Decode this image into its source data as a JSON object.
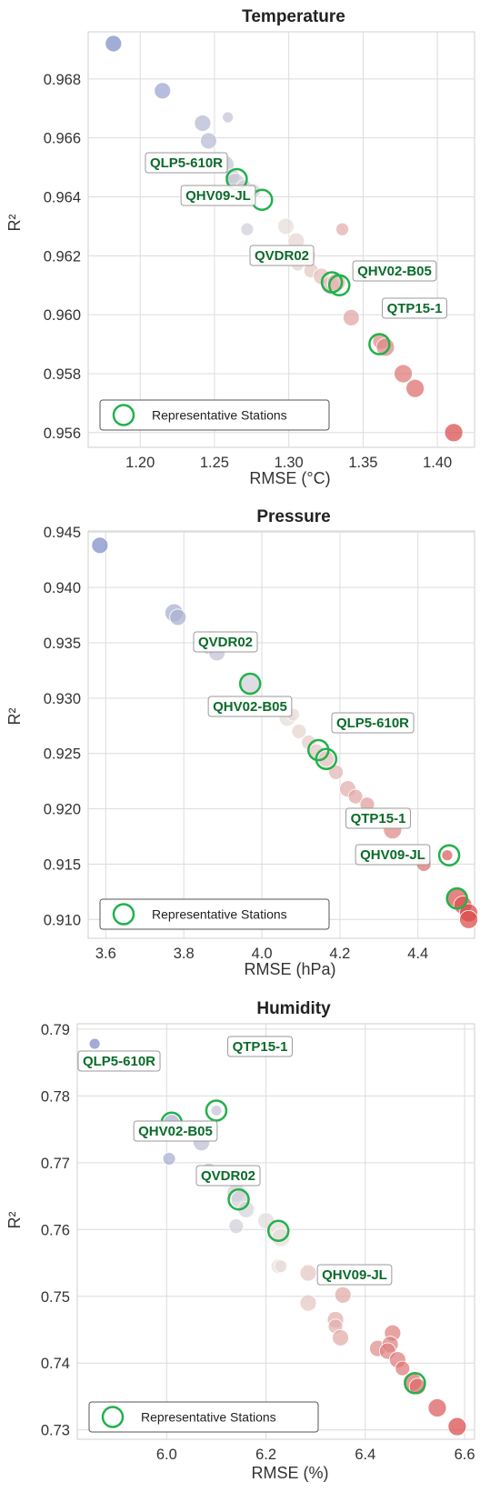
{
  "legend_label": "Representative Stations",
  "colors": {
    "low": "#7d8cc8",
    "mid": "#e6e0dc",
    "high": "#d94a4a",
    "representative_ring": "#22b14c",
    "label_text": "#0b6b2a"
  },
  "chart_data": [
    {
      "type": "scatter",
      "title": "Temperature",
      "xlabel": "RMSE (°C)",
      "ylabel": "R²",
      "xlim": [
        1.165,
        1.425
      ],
      "ylim": [
        0.9555,
        0.9696
      ],
      "xticks": [
        "1.20",
        "1.25",
        "1.30",
        "1.35",
        "1.40"
      ],
      "yticks": [
        "0.956",
        "0.958",
        "0.960",
        "0.962",
        "0.964",
        "0.966",
        "0.968"
      ],
      "legend_position": "lower-left",
      "grid": true,
      "points": [
        [
          1.182,
          0.9692,
          9
        ],
        [
          1.215,
          0.9676,
          9
        ],
        [
          1.242,
          0.9665,
          9
        ],
        [
          1.246,
          0.9659,
          9
        ],
        [
          1.259,
          0.9667,
          6
        ],
        [
          1.257,
          0.9651,
          10
        ],
        [
          1.262,
          0.9647,
          8
        ],
        [
          1.264,
          0.9645,
          10
        ],
        [
          1.27,
          0.9643,
          9
        ],
        [
          1.276,
          0.9642,
          8
        ],
        [
          1.272,
          0.9629,
          7
        ],
        [
          1.298,
          0.963,
          9
        ],
        [
          1.305,
          0.9625,
          9
        ],
        [
          1.312,
          0.962,
          10
        ],
        [
          1.306,
          0.9617,
          7
        ],
        [
          1.315,
          0.9615,
          8
        ],
        [
          1.322,
          0.9613,
          9
        ],
        [
          1.328,
          0.961,
          10
        ],
        [
          1.332,
          0.9611,
          10
        ],
        [
          1.336,
          0.9629,
          7
        ],
        [
          1.342,
          0.9599,
          9
        ],
        [
          1.358,
          0.9615,
          6
        ],
        [
          1.362,
          0.9591,
          9
        ],
        [
          1.365,
          0.9589,
          10
        ],
        [
          1.377,
          0.958,
          10
        ],
        [
          1.385,
          0.9575,
          10
        ],
        [
          1.411,
          0.956,
          10
        ]
      ],
      "representatives": [
        {
          "name": "QLP5-610R",
          "x": 1.265,
          "y": 0.9646
        },
        {
          "name": "QHV09-JL",
          "x": 1.282,
          "y": 0.9639
        },
        {
          "name": "QVDR02",
          "x": 1.329,
          "y": 0.9611
        },
        {
          "name": "QHV02-B05",
          "x": 1.334,
          "y": 0.961
        },
        {
          "name": "QTP15-1",
          "x": 1.361,
          "y": 0.959
        }
      ]
    },
    {
      "type": "scatter",
      "title": "Pressure",
      "xlabel": "RMSE (hPa)",
      "ylabel": "R²",
      "xlim": [
        3.555,
        4.545
      ],
      "ylim": [
        0.9083,
        0.9451
      ],
      "xticks": [
        "3.6",
        "3.8",
        "4.0",
        "4.2",
        "4.4"
      ],
      "yticks": [
        "0.910",
        "0.915",
        "0.920",
        "0.925",
        "0.930",
        "0.935",
        "0.940",
        "0.945"
      ],
      "legend_position": "lower-left",
      "grid": true,
      "points": [
        [
          3.585,
          0.9438,
          9
        ],
        [
          3.775,
          0.9377,
          10
        ],
        [
          3.785,
          0.9373,
          9
        ],
        [
          3.865,
          0.9347,
          9
        ],
        [
          3.875,
          0.9355,
          7
        ],
        [
          3.885,
          0.9341,
          9
        ],
        [
          3.97,
          0.9313,
          10
        ],
        [
          4.065,
          0.9282,
          9
        ],
        [
          4.08,
          0.9285,
          7
        ],
        [
          4.095,
          0.927,
          8
        ],
        [
          4.12,
          0.926,
          8
        ],
        [
          4.14,
          0.9252,
          8
        ],
        [
          4.165,
          0.9245,
          9
        ],
        [
          4.19,
          0.9233,
          8
        ],
        [
          4.22,
          0.9218,
          9
        ],
        [
          4.24,
          0.9211,
          8
        ],
        [
          4.27,
          0.9204,
          8
        ],
        [
          4.32,
          0.9192,
          7
        ],
        [
          4.335,
          0.9181,
          10
        ],
        [
          4.415,
          0.915,
          8
        ],
        [
          4.475,
          0.9158,
          6
        ],
        [
          4.5,
          0.912,
          11
        ],
        [
          4.515,
          0.9113,
          10
        ],
        [
          4.53,
          0.9106,
          10
        ],
        [
          4.53,
          0.91,
          10
        ]
      ],
      "representatives": [
        {
          "name": "QVDR02",
          "x": 3.97,
          "y": 0.9313
        },
        {
          "name": "QHV02-B05",
          "x": 4.145,
          "y": 0.9253
        },
        {
          "name": "QLP5-610R",
          "x": 4.165,
          "y": 0.9245
        },
        {
          "name": "QTP15-1",
          "x": 4.48,
          "y": 0.9158
        },
        {
          "name": "QHV09-JL",
          "x": 4.5,
          "y": 0.9119
        }
      ]
    },
    {
      "type": "scatter",
      "title": "Humidity",
      "xlabel": "RMSE (%)",
      "ylabel": "R²",
      "xlim": [
        5.82,
        6.62
      ],
      "ylim": [
        0.7286,
        0.7908
      ],
      "xticks": [
        "6.0",
        "6.2",
        "6.4",
        "6.6"
      ],
      "yticks": [
        "0.73",
        "0.74",
        "0.75",
        "0.76",
        "0.77",
        "0.78",
        "0.79"
      ],
      "legend_position": "lower-left",
      "grid": true,
      "points": [
        [
          5.855,
          0.7878,
          6
        ],
        [
          6.1,
          0.7778,
          6
        ],
        [
          6.01,
          0.776,
          9
        ],
        [
          6.07,
          0.773,
          9
        ],
        [
          6.005,
          0.7706,
          7
        ],
        [
          6.085,
          0.7687,
          9
        ],
        [
          6.14,
          0.7655,
          10
        ],
        [
          6.148,
          0.7645,
          10
        ],
        [
          6.16,
          0.763,
          9
        ],
        [
          6.2,
          0.7613,
          9
        ],
        [
          6.14,
          0.7605,
          8
        ],
        [
          6.225,
          0.7598,
          10
        ],
        [
          6.23,
          0.7588,
          10
        ],
        [
          6.225,
          0.7545,
          8
        ],
        [
          6.23,
          0.7545,
          7
        ],
        [
          6.285,
          0.7535,
          9
        ],
        [
          6.285,
          0.749,
          9
        ],
        [
          6.355,
          0.7502,
          9
        ],
        [
          6.34,
          0.7465,
          9
        ],
        [
          6.34,
          0.7455,
          8
        ],
        [
          6.35,
          0.7438,
          9
        ],
        [
          6.425,
          0.7422,
          9
        ],
        [
          6.455,
          0.7445,
          9
        ],
        [
          6.45,
          0.7428,
          9
        ],
        [
          6.445,
          0.7418,
          9
        ],
        [
          6.465,
          0.7405,
          9
        ],
        [
          6.475,
          0.7392,
          8
        ],
        [
          6.495,
          0.7372,
          10
        ],
        [
          6.505,
          0.7365,
          9
        ],
        [
          6.545,
          0.7333,
          10
        ],
        [
          6.585,
          0.7305,
          10
        ]
      ],
      "representatives": [
        {
          "name": "QLP5-610R",
          "x": 6.01,
          "y": 0.776
        },
        {
          "name": "QTP15-1",
          "x": 6.1,
          "y": 0.7778
        },
        {
          "name": "QHV02-B05",
          "x": 6.145,
          "y": 0.7645
        },
        {
          "name": "QVDR02",
          "x": 6.225,
          "y": 0.7598
        },
        {
          "name": "QHV09-JL",
          "x": 6.5,
          "y": 0.737
        }
      ]
    }
  ]
}
